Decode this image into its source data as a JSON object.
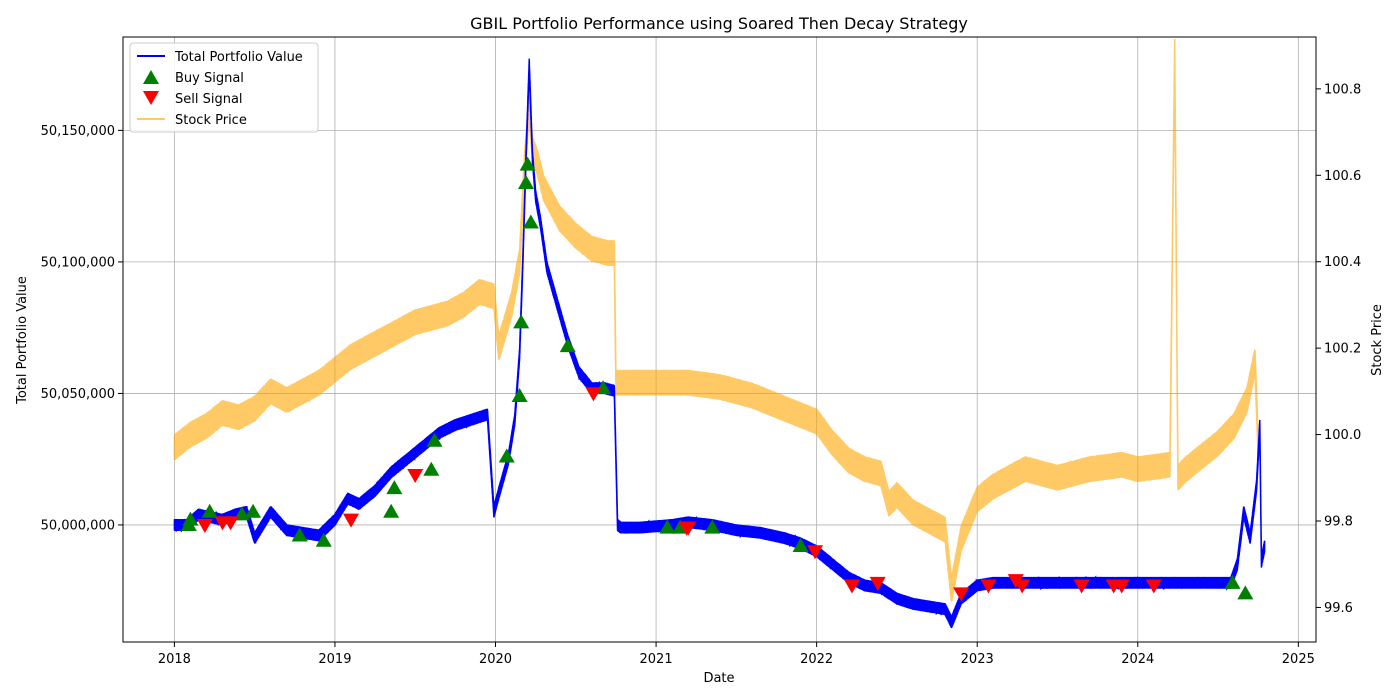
{
  "chart_data": {
    "type": "line",
    "title": "GBIL Portfolio Performance using Soared Then Decay Strategy",
    "xlabel": "Date",
    "ylabel": "Total Portfolio Value",
    "y2label": "Stock Price",
    "grid": true,
    "legend_position": "top-left",
    "x_ticks": [
      "2018",
      "2019",
      "2020",
      "2021",
      "2022",
      "2023",
      "2024",
      "2025"
    ],
    "x_tick_values": [
      2018,
      2019,
      2020,
      2021,
      2022,
      2023,
      2024,
      2025
    ],
    "xlim": [
      2017.68,
      2025.11
    ],
    "y_ticks": [
      "50,000,000",
      "50,050,000",
      "50,100,000",
      "50,150,000"
    ],
    "y_tick_values": [
      50000000,
      50050000,
      50100000,
      50150000
    ],
    "ylim": [
      49955500,
      50185500
    ],
    "y2_ticks": [
      "99.6",
      "99.8",
      "100.0",
      "100.2",
      "100.4",
      "100.6",
      "100.8"
    ],
    "y2_tick_values": [
      99.6,
      99.8,
      100.0,
      100.2,
      100.4,
      100.6,
      100.8
    ],
    "y2lim": [
      99.52,
      100.92
    ],
    "series": [
      {
        "name": "Total Portfolio Value",
        "color": "#0000ff",
        "axis": "left",
        "x": [
          2018.0,
          2018.08,
          2018.15,
          2018.22,
          2018.3,
          2018.38,
          2018.45,
          2018.5,
          2018.55,
          2018.6,
          2018.7,
          2018.8,
          2018.9,
          2019.0,
          2019.08,
          2019.15,
          2019.25,
          2019.35,
          2019.45,
          2019.55,
          2019.65,
          2019.75,
          2019.85,
          2019.95,
          2019.99,
          2020.02,
          2020.08,
          2020.12,
          2020.15,
          2020.17,
          2020.19,
          2020.21,
          2020.23,
          2020.25,
          2020.28,
          2020.32,
          2020.38,
          2020.45,
          2020.52,
          2020.6,
          2020.68,
          2020.74,
          2020.76,
          2020.78,
          2020.9,
          2021.0,
          2021.1,
          2021.2,
          2021.35,
          2021.5,
          2021.65,
          2021.8,
          2021.9,
          2022.0,
          2022.1,
          2022.2,
          2022.3,
          2022.4,
          2022.5,
          2022.6,
          2022.7,
          2022.8,
          2022.84,
          2022.9,
          2023.0,
          2023.1,
          2023.3,
          2023.5,
          2023.8,
          2024.0,
          2024.2,
          2024.5,
          2024.58,
          2024.62,
          2024.66,
          2024.7,
          2024.74,
          2024.76,
          2024.77,
          2024.79
        ],
        "values": [
          50000000,
          50000000,
          50004000,
          50003000,
          50002000,
          50004000,
          50005000,
          49995000,
          50000000,
          50005000,
          49998000,
          49997000,
          49996000,
          50002000,
          50010000,
          50008000,
          50013000,
          50020000,
          50025000,
          50030000,
          50035000,
          50038000,
          50040000,
          50042000,
          50005000,
          50012000,
          50025000,
          50040000,
          50065000,
          50100000,
          50140000,
          50175000,
          50140000,
          50125000,
          50115000,
          50098000,
          50085000,
          50070000,
          50058000,
          50052000,
          50052000,
          50051000,
          50000000,
          49999000,
          49999000,
          49999500,
          50000000,
          50001000,
          50000000,
          49998000,
          49997000,
          49995000,
          49993000,
          49990000,
          49985000,
          49980000,
          49977000,
          49976000,
          49972000,
          49970000,
          49969000,
          49968000,
          49963000,
          49972000,
          49977000,
          49978000,
          49978000,
          49978000,
          49978000,
          49978000,
          49978000,
          49978000,
          49978000,
          49985000,
          50005000,
          49995000,
          50015000,
          50038000,
          49986000,
          49992000
        ]
      },
      {
        "name": "Stock Price",
        "color": "#ffa500",
        "axis": "right",
        "x": [
          2018.0,
          2018.1,
          2018.2,
          2018.3,
          2018.4,
          2018.5,
          2018.6,
          2018.7,
          2018.8,
          2018.9,
          2019.0,
          2019.1,
          2019.2,
          2019.3,
          2019.4,
          2019.5,
          2019.6,
          2019.7,
          2019.8,
          2019.9,
          2019.99,
          2020.02,
          2020.1,
          2020.15,
          2020.18,
          2020.21,
          2020.23,
          2020.26,
          2020.3,
          2020.4,
          2020.5,
          2020.6,
          2020.7,
          2020.74,
          2020.75,
          2020.9,
          2021.0,
          2021.2,
          2021.4,
          2021.6,
          2021.8,
          2022.0,
          2022.1,
          2022.2,
          2022.3,
          2022.4,
          2022.45,
          2022.5,
          2022.6,
          2022.7,
          2022.8,
          2022.84,
          2022.9,
          2023.0,
          2023.1,
          2023.2,
          2023.3,
          2023.5,
          2023.7,
          2023.9,
          2024.0,
          2024.2,
          2024.23,
          2024.25,
          2024.3,
          2024.5,
          2024.6,
          2024.68,
          2024.73,
          2024.75,
          2024.76
        ],
        "values": [
          99.97,
          100.0,
          100.02,
          100.05,
          100.04,
          100.06,
          100.1,
          100.08,
          100.1,
          100.12,
          100.15,
          100.18,
          100.2,
          100.22,
          100.24,
          100.26,
          100.27,
          100.28,
          100.3,
          100.33,
          100.32,
          100.2,
          100.3,
          100.4,
          100.62,
          100.76,
          100.66,
          100.63,
          100.57,
          100.5,
          100.46,
          100.43,
          100.42,
          100.42,
          100.12,
          100.12,
          100.12,
          100.12,
          100.11,
          100.09,
          100.06,
          100.03,
          99.98,
          99.94,
          99.92,
          99.91,
          99.84,
          99.86,
          99.82,
          99.8,
          99.78,
          99.64,
          99.76,
          99.85,
          99.88,
          99.9,
          99.92,
          99.9,
          99.92,
          99.93,
          99.92,
          99.93,
          100.89,
          99.9,
          99.92,
          99.98,
          100.02,
          100.08,
          100.17,
          99.97,
          99.97
        ]
      }
    ],
    "buy_signals": {
      "name": "Buy Signal",
      "color": "#008000",
      "x": [
        2018.09,
        2018.1,
        2018.22,
        2018.42,
        2018.49,
        2018.78,
        2018.93,
        2019.35,
        2019.37,
        2019.6,
        2019.62,
        2020.07,
        2020.15,
        2020.16,
        2020.19,
        2020.2,
        2020.22,
        2020.45,
        2020.67,
        2021.07,
        2021.15,
        2021.35,
        2021.9,
        2024.59,
        2024.67
      ],
      "values": [
        50000000,
        50002000,
        50005000,
        50004000,
        50005000,
        49996000,
        49994000,
        50005000,
        50014000,
        50021000,
        50032000,
        50026000,
        50049000,
        50077000,
        50130000,
        50137000,
        50115000,
        50068000,
        50052000,
        49999000,
        49999000,
        49999000,
        49992000,
        49978000,
        49974000
      ]
    },
    "sell_signals": {
      "name": "Sell Signal",
      "color": "#ff0000",
      "x": [
        2018.19,
        2018.3,
        2018.35,
        2019.1,
        2019.5,
        2020.61,
        2021.19,
        2021.2,
        2021.99,
        2022.22,
        2022.38,
        2022.9,
        2023.07,
        2023.24,
        2023.28,
        2023.65,
        2023.85,
        2023.9,
        2024.1
      ],
      "values": [
        50000000,
        50001000,
        50001000,
        50002000,
        50019000,
        50050000,
        49999000,
        49999000,
        49990000,
        49977000,
        49978000,
        49974000,
        49977000,
        49979000,
        49977000,
        49977000,
        49977000,
        49977000,
        49977000
      ]
    }
  }
}
